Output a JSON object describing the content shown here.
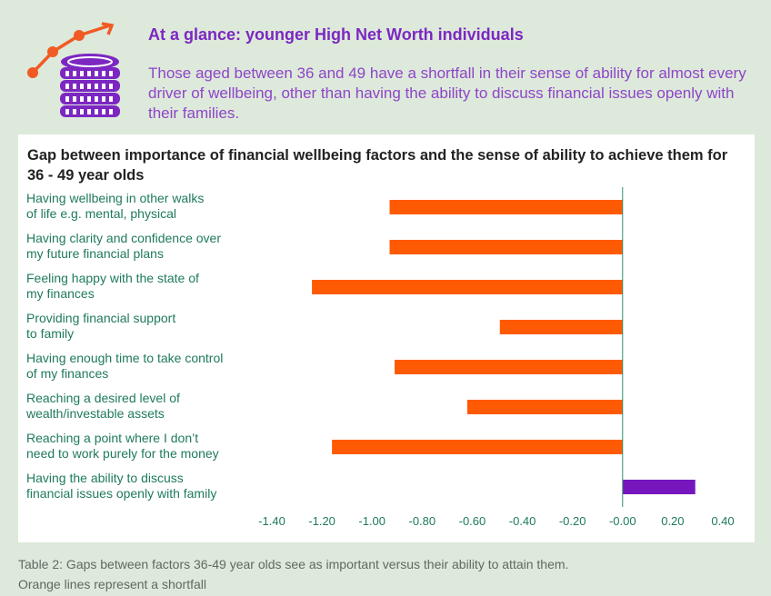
{
  "header": {
    "title": "At a glance: younger High Net Worth individuals",
    "subtitle": "Those aged between 36 and 49 have a shortfall in their sense of ability for almost every driver of wellbeing, other than having the ability to discuss financial issues openly with their families."
  },
  "icon": "growth-chart-coins-icon",
  "colors": {
    "shortfall": "#fe5a04",
    "surplus": "#7616bd",
    "axis_line": "#2f8f6f",
    "tick_text": "#1f7a5f",
    "title_purple": "#7c27c2",
    "icon_orange": "#f15a24"
  },
  "chart_data": {
    "type": "bar",
    "orientation": "horizontal",
    "title": "Gap between importance of financial wellbeing factors and the sense of ability to achieve them for 36 - 49 year olds",
    "categories": [
      [
        "Having wellbeing in other walks",
        "of life e.g. mental, physical"
      ],
      [
        "Having clarity and confidence over",
        "my future financial plans"
      ],
      [
        "Feeling happy with the state of",
        "my finances"
      ],
      [
        "Providing financial support",
        "to family"
      ],
      [
        "Having enough time to take control",
        "of my finances"
      ],
      [
        "Reaching a desired level of",
        "wealth/investable assets"
      ],
      [
        "Reaching a point where I don’t",
        "need to work purely for the money"
      ],
      [
        "Having the ability to discuss",
        "financial issues openly with family"
      ]
    ],
    "values": [
      -0.93,
      -0.93,
      -1.24,
      -0.49,
      -0.91,
      -0.62,
      -1.16,
      0.29
    ],
    "xlim": [
      -1.4,
      0.4
    ],
    "xticks": [
      "-1.40",
      "-1.20",
      "-1.00",
      "-0.80",
      "-0.60",
      "-0.40",
      "-0.20",
      "-0.00",
      "0.20",
      "0.40"
    ],
    "xlabel": "",
    "ylabel": ""
  },
  "caption": {
    "line1": "Table 2: Gaps between factors 36-49 year olds see as important versus their ability to attain them.",
    "line2": "Orange lines represent a shortfall"
  }
}
